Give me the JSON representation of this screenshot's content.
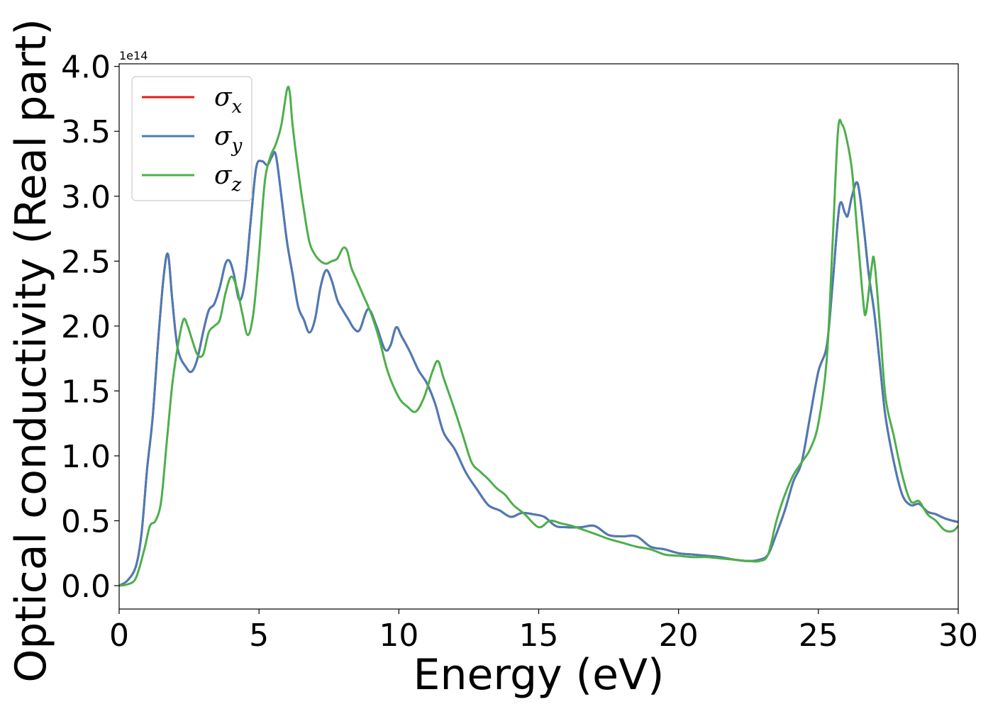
{
  "chart_data": {
    "type": "line",
    "title": "",
    "xlabel": "Energy (eV)",
    "ylabel": "Optical conductivity (Real part)",
    "y_offset_text": "1e14",
    "xlim": [
      0,
      30
    ],
    "ylim": [
      -0.18,
      4.02
    ],
    "x_ticks": [
      0,
      5,
      10,
      15,
      20,
      25,
      30
    ],
    "x_tick_labels": [
      "0",
      "5",
      "10",
      "15",
      "20",
      "25",
      "30"
    ],
    "y_ticks": [
      0.0,
      0.5,
      1.0,
      1.5,
      2.0,
      2.5,
      3.0,
      3.5,
      4.0
    ],
    "y_tick_labels": [
      "0.0",
      "0.5",
      "1.0",
      "1.5",
      "2.0",
      "2.5",
      "3.0",
      "3.5",
      "4.0"
    ],
    "grid": false,
    "legend_position": "upper-left",
    "series": [
      {
        "name": "σx",
        "symbol": "σ",
        "subscript": "x",
        "color": "#e41a1c",
        "x": [
          0,
          0.3,
          0.6,
          0.8,
          1.0,
          1.2,
          1.4,
          1.6,
          1.75,
          1.9,
          2.1,
          2.4,
          2.6,
          2.8,
          3.0,
          3.2,
          3.4,
          3.6,
          3.8,
          3.95,
          4.1,
          4.3,
          4.5,
          4.7,
          4.9,
          5.1,
          5.3,
          5.45,
          5.6,
          5.8,
          6.0,
          6.2,
          6.4,
          6.6,
          6.8,
          7.0,
          7.2,
          7.4,
          7.6,
          7.8,
          8.0,
          8.2,
          8.4,
          8.6,
          8.9,
          9.2,
          9.5,
          9.7,
          9.9,
          10.1,
          10.4,
          10.7,
          11.0,
          11.3,
          11.6,
          12.0,
          12.4,
          12.8,
          13.2,
          13.6,
          14.0,
          14.4,
          14.8,
          15.2,
          15.6,
          16.0,
          16.5,
          17.0,
          17.5,
          18.0,
          18.5,
          19.0,
          19.5,
          20.0,
          20.5,
          21.0,
          21.5,
          22.0,
          22.5,
          22.9,
          23.2,
          23.5,
          23.8,
          24.1,
          24.4,
          24.7,
          25.0,
          25.3,
          25.5,
          25.75,
          25.95,
          26.05,
          26.2,
          26.4,
          26.6,
          26.8,
          27.0,
          27.2,
          27.4,
          27.7,
          28.0,
          28.3,
          28.6,
          28.9,
          29.2,
          29.5,
          29.8,
          30.0
        ],
        "values": [
          0,
          0.04,
          0.15,
          0.4,
          0.9,
          1.3,
          1.9,
          2.4,
          2.55,
          2.2,
          1.82,
          1.68,
          1.65,
          1.75,
          1.95,
          2.12,
          2.17,
          2.3,
          2.48,
          2.5,
          2.4,
          2.2,
          2.35,
          2.8,
          3.22,
          3.27,
          3.24,
          3.3,
          3.32,
          3.0,
          2.65,
          2.4,
          2.15,
          2.05,
          1.95,
          2.05,
          2.3,
          2.43,
          2.35,
          2.2,
          2.12,
          2.05,
          1.98,
          1.97,
          2.13,
          2.0,
          1.82,
          1.85,
          1.99,
          1.92,
          1.8,
          1.66,
          1.56,
          1.4,
          1.18,
          1.05,
          0.87,
          0.74,
          0.62,
          0.58,
          0.53,
          0.56,
          0.55,
          0.53,
          0.46,
          0.45,
          0.45,
          0.46,
          0.39,
          0.38,
          0.38,
          0.3,
          0.28,
          0.25,
          0.24,
          0.23,
          0.22,
          0.2,
          0.19,
          0.2,
          0.24,
          0.4,
          0.58,
          0.8,
          0.95,
          1.3,
          1.65,
          1.85,
          2.3,
          2.92,
          2.87,
          2.85,
          3.0,
          3.1,
          2.8,
          2.4,
          2.1,
          1.7,
          1.3,
          0.95,
          0.7,
          0.62,
          0.63,
          0.57,
          0.55,
          0.52,
          0.5,
          0.49
        ]
      },
      {
        "name": "σy",
        "symbol": "σ",
        "subscript": "y",
        "color": "#4a7bb7",
        "x": [
          0,
          0.3,
          0.6,
          0.8,
          1.0,
          1.2,
          1.4,
          1.6,
          1.75,
          1.9,
          2.1,
          2.4,
          2.6,
          2.8,
          3.0,
          3.2,
          3.4,
          3.6,
          3.8,
          3.95,
          4.1,
          4.3,
          4.5,
          4.7,
          4.9,
          5.1,
          5.3,
          5.45,
          5.6,
          5.8,
          6.0,
          6.2,
          6.4,
          6.6,
          6.8,
          7.0,
          7.2,
          7.4,
          7.6,
          7.8,
          8.0,
          8.2,
          8.4,
          8.6,
          8.9,
          9.2,
          9.5,
          9.7,
          9.9,
          10.1,
          10.4,
          10.7,
          11.0,
          11.3,
          11.6,
          12.0,
          12.4,
          12.8,
          13.2,
          13.6,
          14.0,
          14.4,
          14.8,
          15.2,
          15.6,
          16.0,
          16.5,
          17.0,
          17.5,
          18.0,
          18.5,
          19.0,
          19.5,
          20.0,
          20.5,
          21.0,
          21.5,
          22.0,
          22.5,
          22.9,
          23.2,
          23.5,
          23.8,
          24.1,
          24.4,
          24.7,
          25.0,
          25.3,
          25.5,
          25.75,
          25.95,
          26.05,
          26.2,
          26.4,
          26.6,
          26.8,
          27.0,
          27.2,
          27.4,
          27.7,
          28.0,
          28.3,
          28.6,
          28.9,
          29.2,
          29.5,
          29.8,
          30.0
        ],
        "values": [
          0,
          0.04,
          0.15,
          0.4,
          0.9,
          1.3,
          1.9,
          2.4,
          2.55,
          2.2,
          1.82,
          1.68,
          1.65,
          1.75,
          1.95,
          2.12,
          2.17,
          2.3,
          2.48,
          2.5,
          2.4,
          2.2,
          2.35,
          2.8,
          3.22,
          3.27,
          3.24,
          3.3,
          3.32,
          3.0,
          2.65,
          2.4,
          2.15,
          2.05,
          1.95,
          2.05,
          2.3,
          2.43,
          2.35,
          2.2,
          2.12,
          2.05,
          1.98,
          1.97,
          2.13,
          2.0,
          1.82,
          1.85,
          1.99,
          1.92,
          1.8,
          1.66,
          1.56,
          1.4,
          1.18,
          1.05,
          0.87,
          0.74,
          0.62,
          0.58,
          0.53,
          0.56,
          0.55,
          0.53,
          0.46,
          0.45,
          0.45,
          0.46,
          0.39,
          0.38,
          0.38,
          0.3,
          0.28,
          0.25,
          0.24,
          0.23,
          0.22,
          0.2,
          0.19,
          0.2,
          0.24,
          0.4,
          0.58,
          0.8,
          0.95,
          1.3,
          1.65,
          1.85,
          2.3,
          2.92,
          2.87,
          2.85,
          3.0,
          3.1,
          2.8,
          2.4,
          2.1,
          1.7,
          1.3,
          0.95,
          0.7,
          0.62,
          0.63,
          0.57,
          0.55,
          0.52,
          0.5,
          0.49
        ]
      },
      {
        "name": "σz",
        "symbol": "σ",
        "subscript": "z",
        "color": "#4daf4a",
        "x": [
          0,
          0.3,
          0.6,
          0.9,
          1.1,
          1.3,
          1.5,
          1.7,
          1.9,
          2.1,
          2.3,
          2.45,
          2.6,
          2.8,
          3.0,
          3.2,
          3.4,
          3.6,
          3.8,
          4.0,
          4.2,
          4.4,
          4.6,
          4.8,
          5.0,
          5.2,
          5.4,
          5.6,
          5.8,
          6.0,
          6.1,
          6.2,
          6.4,
          6.6,
          6.8,
          7.0,
          7.2,
          7.4,
          7.6,
          7.8,
          8.0,
          8.15,
          8.3,
          8.5,
          8.7,
          9.0,
          9.3,
          9.6,
          10.0,
          10.3,
          10.6,
          10.9,
          11.2,
          11.4,
          11.6,
          12.0,
          12.3,
          12.6,
          12.9,
          13.2,
          13.5,
          13.8,
          14.1,
          14.5,
          15.0,
          15.4,
          15.8,
          16.2,
          16.6,
          17.0,
          17.5,
          18.0,
          18.5,
          19.0,
          19.5,
          20.0,
          20.5,
          21.0,
          21.5,
          22.0,
          22.5,
          22.9,
          23.2,
          23.5,
          23.8,
          24.1,
          24.4,
          24.7,
          25.0,
          25.3,
          25.5,
          25.7,
          25.85,
          26.0,
          26.2,
          26.4,
          26.6,
          26.7,
          26.9,
          27.0,
          27.2,
          27.4,
          27.7,
          28.0,
          28.3,
          28.6,
          28.9,
          29.2,
          29.5,
          29.8,
          30.0
        ],
        "values": [
          0,
          0.01,
          0.06,
          0.28,
          0.46,
          0.5,
          0.65,
          1.1,
          1.55,
          1.85,
          2.05,
          2.0,
          1.9,
          1.78,
          1.78,
          1.95,
          2.0,
          2.05,
          2.25,
          2.38,
          2.3,
          2.1,
          1.93,
          2.1,
          2.55,
          3.1,
          3.3,
          3.4,
          3.55,
          3.82,
          3.8,
          3.55,
          3.2,
          2.9,
          2.65,
          2.55,
          2.5,
          2.48,
          2.5,
          2.52,
          2.6,
          2.58,
          2.45,
          2.35,
          2.25,
          2.1,
          1.9,
          1.65,
          1.45,
          1.38,
          1.34,
          1.45,
          1.65,
          1.73,
          1.6,
          1.35,
          1.15,
          0.95,
          0.88,
          0.82,
          0.75,
          0.7,
          0.62,
          0.55,
          0.45,
          0.5,
          0.48,
          0.46,
          0.43,
          0.4,
          0.36,
          0.33,
          0.3,
          0.28,
          0.24,
          0.23,
          0.22,
          0.22,
          0.21,
          0.2,
          0.19,
          0.19,
          0.24,
          0.5,
          0.7,
          0.85,
          0.95,
          1.05,
          1.25,
          1.75,
          2.6,
          3.5,
          3.55,
          3.45,
          3.2,
          2.7,
          2.2,
          2.1,
          2.45,
          2.5,
          2.0,
          1.45,
          1.15,
          0.85,
          0.65,
          0.65,
          0.55,
          0.5,
          0.43,
          0.42,
          0.46
        ]
      }
    ]
  }
}
